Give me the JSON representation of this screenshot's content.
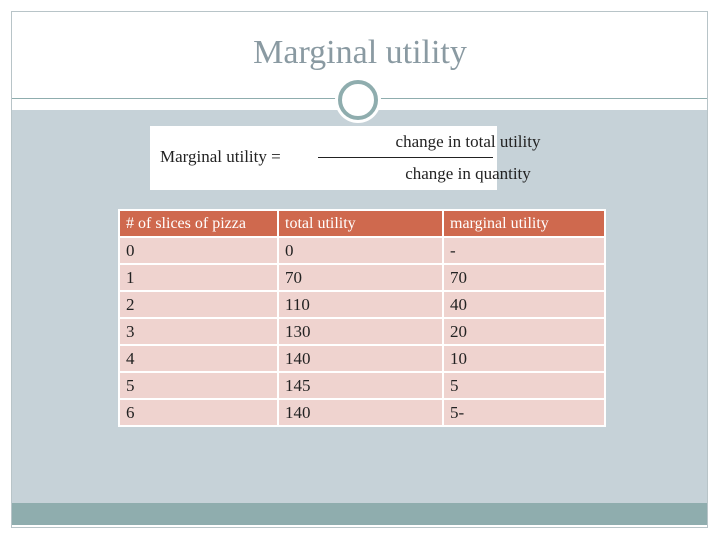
{
  "header": {
    "title": "Marginal utility"
  },
  "formula": {
    "lhs": "Marginal utility =",
    "numerator": "change in total utility",
    "denominator": "change in quantity"
  },
  "table": {
    "columns": [
      "# of slices of pizza",
      "total utility",
      "marginal utility"
    ],
    "rows": [
      [
        "0",
        "0",
        "-"
      ],
      [
        "1",
        "70",
        "70"
      ],
      [
        "2",
        "110",
        "40"
      ],
      [
        "3",
        "130",
        "20"
      ],
      [
        "4",
        "140",
        "10"
      ],
      [
        "5",
        "145",
        "5"
      ],
      [
        "6",
        "140",
        "5-"
      ]
    ]
  }
}
